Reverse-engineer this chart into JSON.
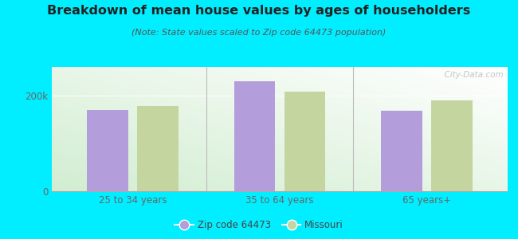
{
  "title": "Breakdown of mean house values by ages of householders",
  "subtitle": "(Note: State values scaled to Zip code 64473 population)",
  "categories": [
    "25 to 34 years",
    "35 to 64 years",
    "65 years+"
  ],
  "zip_values": [
    170000,
    230000,
    168000
  ],
  "state_values": [
    178000,
    208000,
    190000
  ],
  "ylim": [
    0,
    260000
  ],
  "ytick_vals": [
    0,
    200000
  ],
  "ytick_labels": [
    "0",
    "200k"
  ],
  "bar_color_zip": "#b39ddb",
  "bar_color_state": "#c5d5a0",
  "background_outer": "#00eeff",
  "watermark": "  City-Data.com",
  "legend_zip": "Zip code 64473",
  "legend_state": "Missouri",
  "bar_width": 0.28,
  "title_color": "#222222",
  "subtitle_color": "#555555",
  "tick_color": "#666666"
}
